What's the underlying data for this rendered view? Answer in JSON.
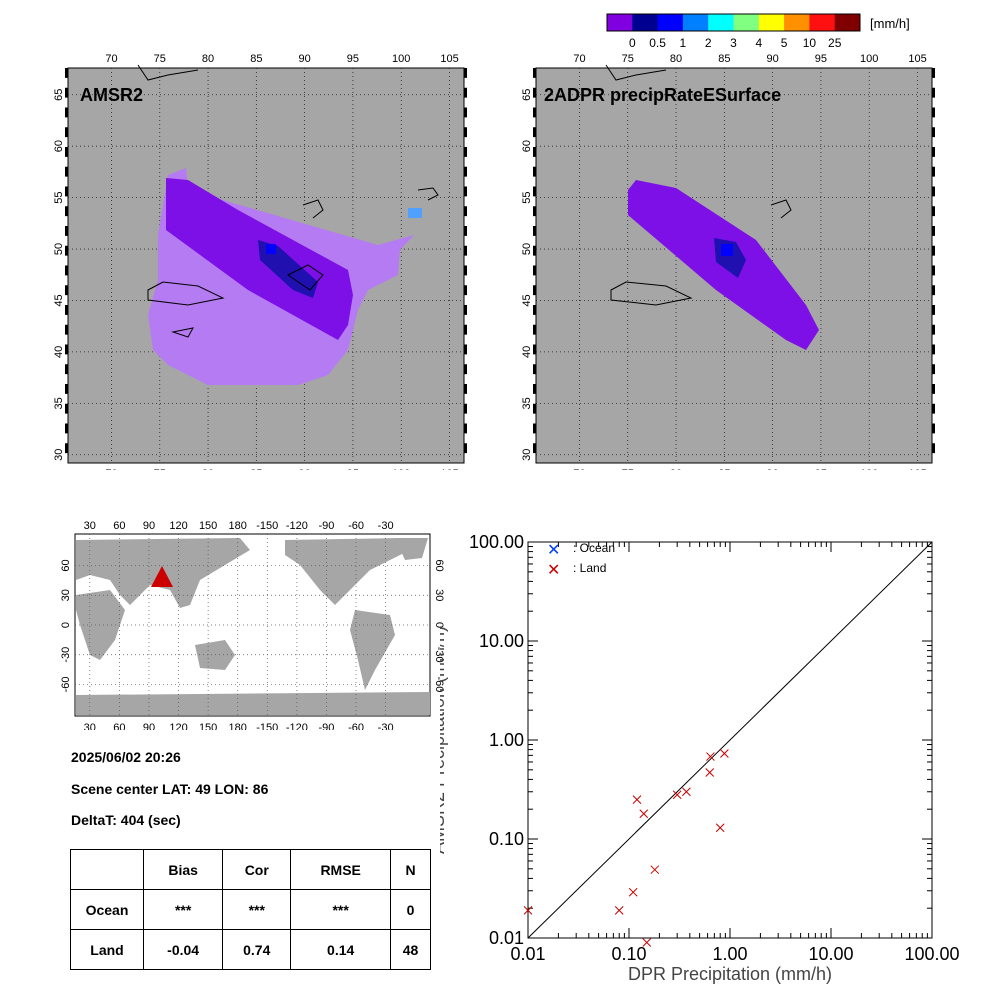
{
  "colorbar": {
    "unit": "[mm/h]",
    "labels": [
      "0",
      "0.5",
      "1",
      "2",
      "3",
      "4",
      "5",
      "10",
      "25"
    ],
    "colors": [
      "#8000e0",
      "#000090",
      "#0000ff",
      "#0080ff",
      "#00ffff",
      "#80ff80",
      "#ffff00",
      "#ff9000",
      "#ff1010",
      "#800000"
    ]
  },
  "maps": [
    {
      "title": "AMSR2",
      "lon_ticks": [
        "70",
        "75",
        "80",
        "85",
        "90",
        "95",
        "100",
        "105"
      ],
      "lat_ticks": [
        "30",
        "35",
        "40",
        "45",
        "50",
        "55",
        "60",
        "65"
      ]
    },
    {
      "title": "2ADPR precipRateESurface",
      "lon_ticks": [
        "70",
        "75",
        "80",
        "85",
        "90",
        "95",
        "100",
        "105"
      ],
      "lat_ticks": [
        "30",
        "35",
        "40",
        "45",
        "50",
        "55",
        "60",
        "65"
      ]
    }
  ],
  "globe": {
    "lon_ticks": [
      "30",
      "60",
      "90",
      "120",
      "150",
      "180",
      "-150",
      "-120",
      "-90",
      "-60",
      "-30"
    ],
    "lat_ticks": [
      "-60",
      "-30",
      "0",
      "30",
      "60"
    ],
    "marker_color": "#cc0000"
  },
  "info": {
    "datetime": "2025/06/02 20:26",
    "scene_center": "Scene center LAT: 49   LON:  86",
    "delta_t": "DeltaT:  404 (sec)"
  },
  "stats": {
    "headers": [
      "",
      "Bias",
      "Cor",
      "RMSE",
      "N"
    ],
    "rows": [
      [
        "Ocean",
        "***",
        "***",
        "***",
        "0"
      ],
      [
        "Land",
        "-0.04",
        "0.74",
        "0.14",
        "48"
      ]
    ]
  },
  "chart_data": {
    "type": "scatter",
    "xlabel": "DPR Precipitation (mm/h)",
    "ylabel": "AMSR2 Precipitation (mm/h)",
    "xscale": "log",
    "yscale": "log",
    "xlim": [
      0.01,
      100
    ],
    "ylim": [
      0.01,
      100
    ],
    "tick_labels": [
      "0.01",
      "0.10",
      "1.00",
      "10.00",
      "100.00"
    ],
    "legend_placement": "top-left",
    "series": [
      {
        "name": ": Ocean",
        "color": "#0040ff",
        "points": []
      },
      {
        "name": ": Land",
        "color": "#cc0000",
        "points": [
          [
            0.01,
            0.019
          ],
          [
            0.08,
            0.019
          ],
          [
            0.11,
            0.029
          ],
          [
            0.15,
            0.009
          ],
          [
            0.18,
            0.049
          ],
          [
            0.12,
            0.25
          ],
          [
            0.14,
            0.18
          ],
          [
            0.3,
            0.28
          ],
          [
            0.37,
            0.3
          ],
          [
            0.63,
            0.47
          ],
          [
            0.64,
            0.68
          ],
          [
            0.88,
            0.73
          ],
          [
            0.8,
            0.13
          ]
        ]
      }
    ],
    "reference_line": "y=x"
  }
}
